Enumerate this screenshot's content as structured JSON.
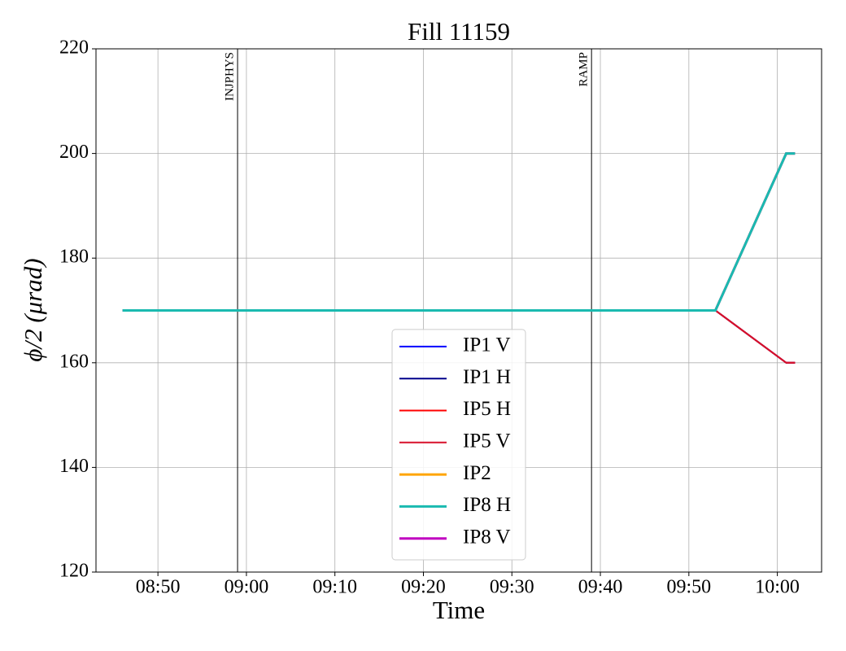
{
  "chart_data": {
    "type": "line",
    "title": "Fill 11159",
    "x_label": "Time",
    "y_label": "ϕ/2 (μrad)",
    "x": [
      "08:46",
      "09:53",
      "10:01",
      "10:02"
    ],
    "series": [
      {
        "name": "IP1 V",
        "color": "#0000ff",
        "width": 2,
        "values": [
          170,
          170,
          160,
          160
        ]
      },
      {
        "name": "IP1 H",
        "color": "#00008b",
        "width": 2,
        "values": [
          170,
          170,
          160,
          160
        ]
      },
      {
        "name": "IP5 H",
        "color": "#ff0000",
        "width": 2,
        "values": [
          170,
          170,
          160,
          160
        ]
      },
      {
        "name": "IP5 V",
        "color": "#d7102a",
        "width": 2,
        "values": [
          170,
          170,
          160,
          160
        ]
      },
      {
        "name": "IP2",
        "color": "#ffa500",
        "width": 3,
        "values": [
          170,
          170,
          200,
          200
        ]
      },
      {
        "name": "IP8 V",
        "color": "#c000c0",
        "width": 3,
        "values": [
          170,
          170,
          200,
          200
        ]
      },
      {
        "name": "IP8 H",
        "color": "#1abab0",
        "width": 3,
        "values": [
          170,
          170,
          200,
          200
        ]
      }
    ],
    "legend_order": [
      0,
      1,
      2,
      3,
      4,
      6,
      5
    ],
    "events": [
      {
        "x": "08:59",
        "label": "INJPHYS"
      },
      {
        "x": "09:39",
        "label": "RAMP"
      }
    ],
    "xlim": [
      "08:43",
      "10:05"
    ],
    "xticks": [
      "08:50",
      "09:00",
      "09:10",
      "09:20",
      "09:30",
      "09:40",
      "09:50",
      "10:00"
    ],
    "ylim": [
      120,
      220
    ],
    "yticks": [
      120,
      140,
      160,
      180,
      200,
      220
    ],
    "grid": true,
    "legend": "lower center"
  }
}
